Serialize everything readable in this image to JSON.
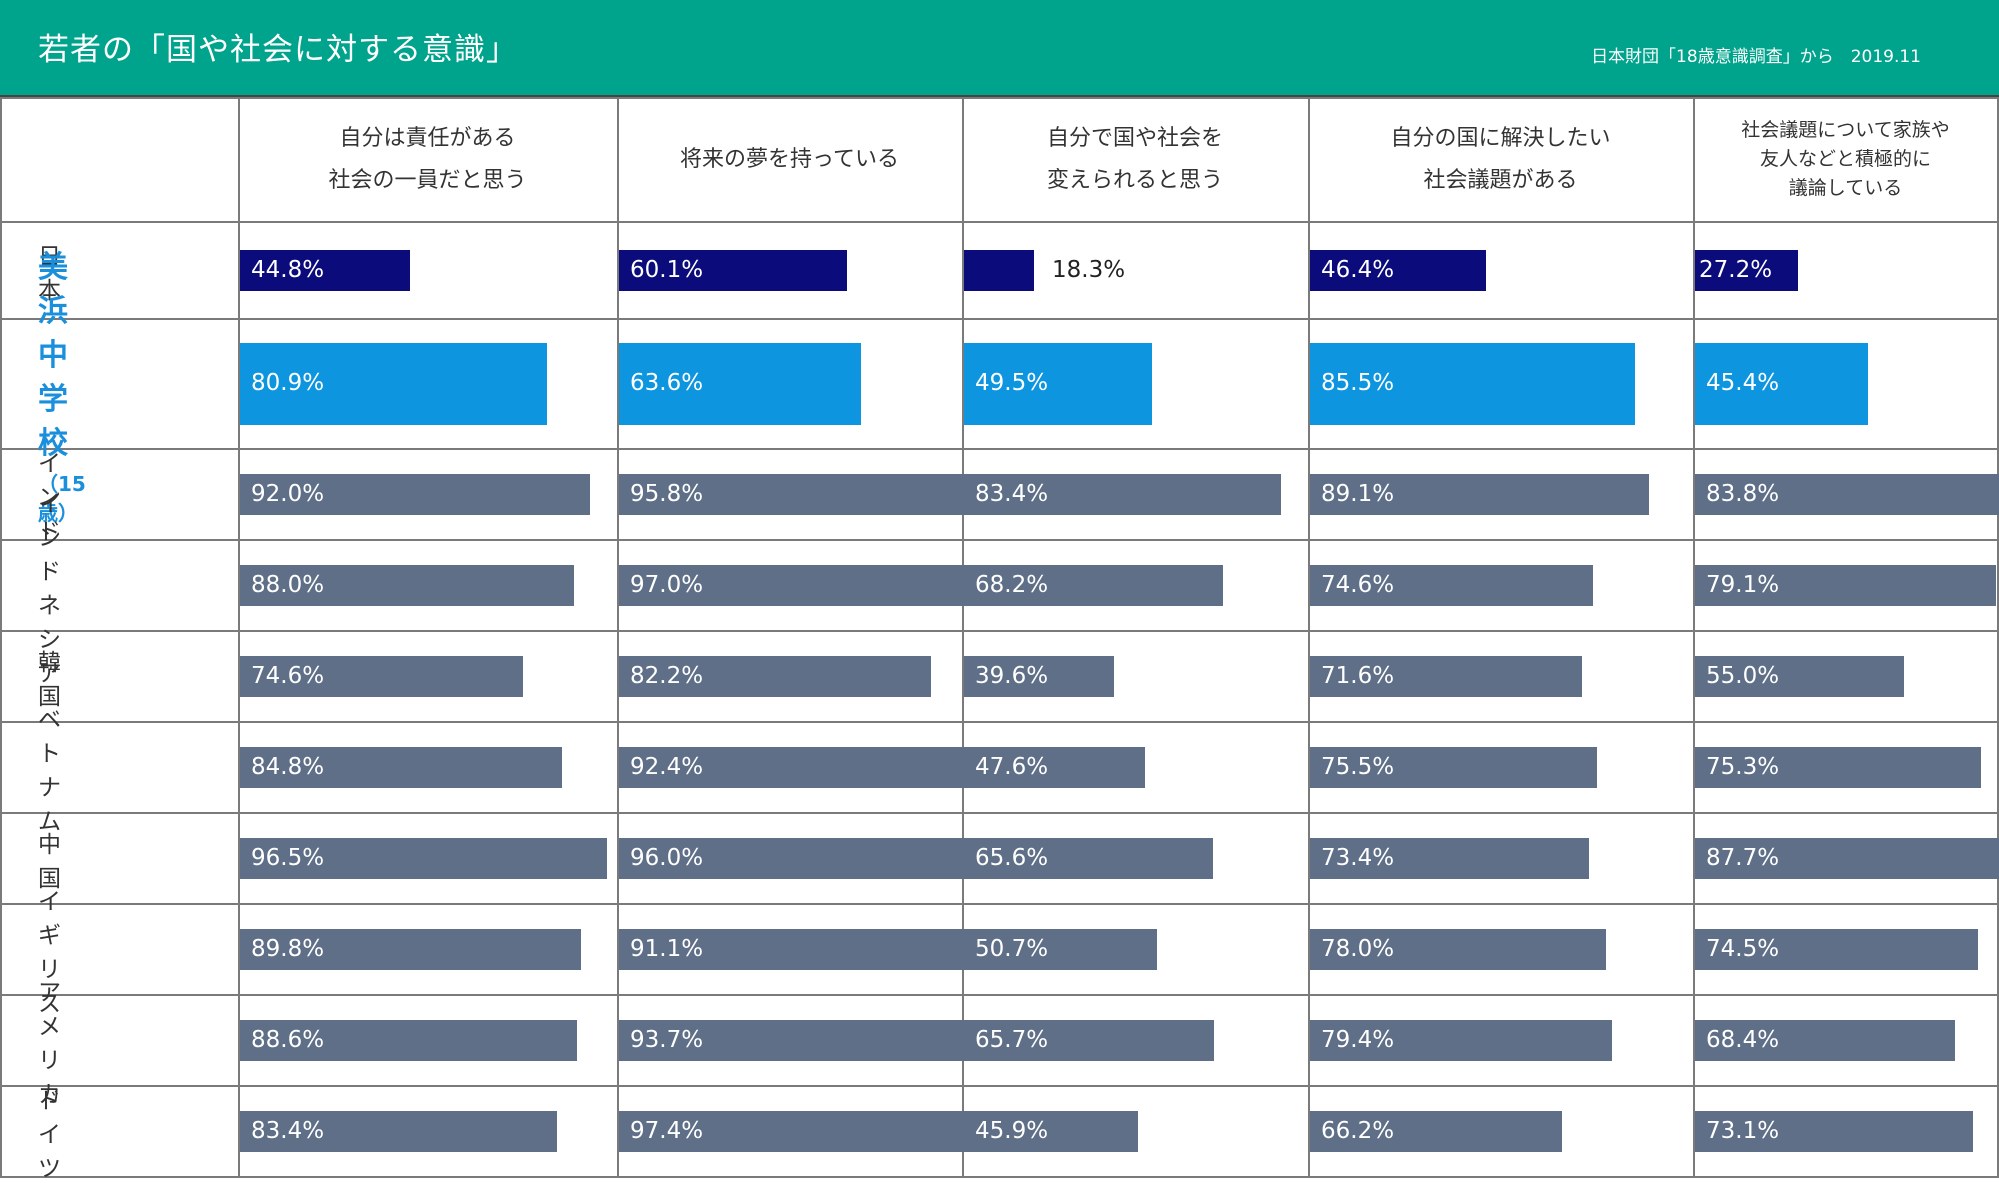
{
  "header": {
    "title": "若者の「国や社会に対する意識」",
    "source": "日本財団「18歳意識調査」から　2019.11"
  },
  "colors": {
    "header_bg": "#00a38b",
    "japan_bar": "#0b0b7c",
    "highlight_bar": "#0e95e0",
    "other_bar": "#5f6f87",
    "highlight_text": "#1a8fdc"
  },
  "chart_data": {
    "type": "bar",
    "orientation": "horizontal",
    "title": "若者の「国や社会に対する意識」",
    "source": "日本財団「18歳意識調査」から　2019.11",
    "unit": "%",
    "xlim": [
      0,
      100
    ],
    "categories": [
      "自分は責任がある\n社会の一員だと思う",
      "将来の夢を持っている",
      "自分で国や社会を\n変えられると思う",
      "自分の国に解決したい\n社会議題がある",
      "社会議題について家族や\n友人などと積極的に\n議論している"
    ],
    "rows": [
      {
        "label": "日本",
        "style": "japan",
        "values": [
          44.8,
          60.1,
          18.3,
          46.4,
          27.2
        ],
        "labels": [
          "44.8%",
          "60.1%",
          "18.3%",
          "46.4%",
          "27.2%"
        ]
      },
      {
        "label": "美浜中学校",
        "sublabel": "（15歳）",
        "style": "highlight",
        "values": [
          80.9,
          63.6,
          49.5,
          85.5,
          45.4
        ],
        "labels": [
          "80.9%",
          "63.6%",
          "49.5%",
          "85.5%",
          "45.4%"
        ]
      },
      {
        "label": "インド",
        "style": "other",
        "values": [
          92.0,
          95.8,
          83.4,
          89.1,
          83.8
        ],
        "labels": [
          "92.0%",
          "95.8%",
          "83.4%",
          "89.1%",
          "83.8%"
        ]
      },
      {
        "label": "インドネシア",
        "style": "other",
        "values": [
          88.0,
          97.0,
          68.2,
          74.6,
          79.1
        ],
        "labels": [
          "88.0%",
          "97.0%",
          "68.2%",
          "74.6%",
          "79.1%"
        ]
      },
      {
        "label": "韓国",
        "style": "other",
        "values": [
          74.6,
          82.2,
          39.6,
          71.6,
          55.0
        ],
        "labels": [
          "74.6%",
          "82.2%",
          "39.6%",
          "71.6%",
          "55.0%"
        ]
      },
      {
        "label": "ベトナム",
        "style": "other",
        "values": [
          84.8,
          92.4,
          47.6,
          75.5,
          75.3
        ],
        "labels": [
          "84.8%",
          "92.4%",
          "47.6%",
          "75.5%",
          "75.3%"
        ]
      },
      {
        "label": "中国",
        "style": "other",
        "values": [
          96.5,
          96.0,
          65.6,
          73.4,
          87.7
        ],
        "labels": [
          "96.5%",
          "96.0%",
          "65.6%",
          "73.4%",
          "87.7%"
        ]
      },
      {
        "label": "イギリス",
        "style": "other",
        "values": [
          89.8,
          91.1,
          50.7,
          78.0,
          74.5
        ],
        "labels": [
          "89.8%",
          "91.1%",
          "50.7%",
          "78.0%",
          "74.5%"
        ]
      },
      {
        "label": "アメリカ",
        "style": "other",
        "values": [
          88.6,
          93.7,
          65.7,
          79.4,
          68.4
        ],
        "labels": [
          "88.6%",
          "93.7%",
          "65.7%",
          "79.4%",
          "68.4%"
        ]
      },
      {
        "label": "ドイツ",
        "style": "other",
        "values": [
          83.4,
          97.4,
          45.9,
          66.2,
          73.1
        ],
        "labels": [
          "83.4%",
          "97.4%",
          "45.9%",
          "66.2%",
          "73.1%"
        ]
      }
    ]
  }
}
